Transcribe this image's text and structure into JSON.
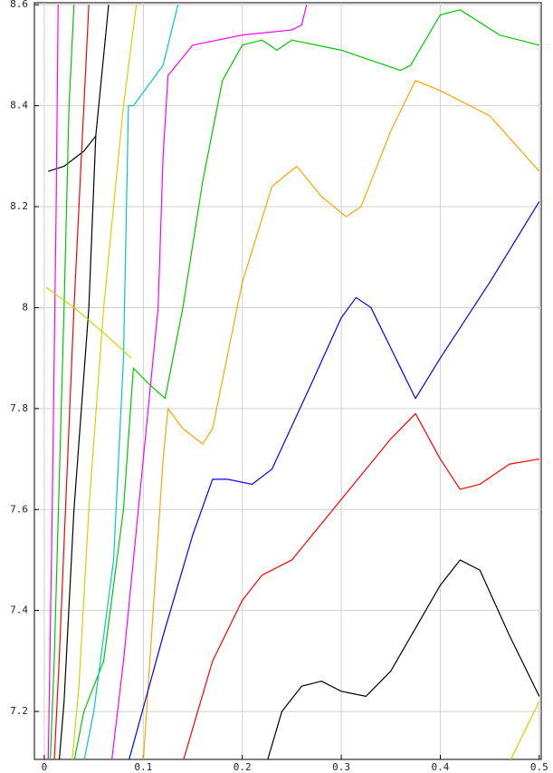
{
  "chart_data": {
    "type": "line",
    "xlim": [
      -0.01,
      0.502
    ],
    "ylim": [
      7.105,
      8.604
    ],
    "xticks": [
      0,
      0.1,
      0.2,
      0.3,
      0.4,
      0.5
    ],
    "yticks": [
      7.2,
      7.4,
      7.6,
      7.8,
      8,
      8.2,
      8.4,
      8.6
    ],
    "grid": true,
    "series": [
      {
        "color": "#00c800",
        "x": [
          0.03,
          0.04,
          0.06,
          0.08,
          0.09,
          0.105,
          0.122,
          0.14,
          0.16,
          0.18,
          0.2,
          0.22,
          0.235,
          0.25,
          0.3,
          0.36,
          0.37,
          0.4,
          0.42,
          0.46,
          0.5
        ],
        "values": [
          7.1,
          7.2,
          7.3,
          7.6,
          7.88,
          7.85,
          7.82,
          8.0,
          8.25,
          8.45,
          8.52,
          8.53,
          8.51,
          8.53,
          8.51,
          8.47,
          8.48,
          8.58,
          8.59,
          8.54,
          8.52
        ]
      },
      {
        "color": "#ffa500",
        "x": [
          0.1,
          0.11,
          0.12,
          0.125,
          0.14,
          0.16,
          0.17,
          0.2,
          0.23,
          0.255,
          0.28,
          0.305,
          0.32,
          0.35,
          0.375,
          0.4,
          0.45,
          0.5
        ],
        "values": [
          7.1,
          7.4,
          7.7,
          7.8,
          7.76,
          7.73,
          7.76,
          8.05,
          8.24,
          8.28,
          8.22,
          8.18,
          8.2,
          8.35,
          8.45,
          8.43,
          8.38,
          8.27
        ]
      },
      {
        "color": "#0000ff",
        "x": [
          0.085,
          0.12,
          0.15,
          0.17,
          0.185,
          0.21,
          0.23,
          0.27,
          0.3,
          0.315,
          0.33,
          0.36,
          0.375,
          0.4,
          0.45,
          0.5
        ],
        "values": [
          7.1,
          7.35,
          7.55,
          7.66,
          7.66,
          7.65,
          7.68,
          7.85,
          7.98,
          8.02,
          8.0,
          7.88,
          7.82,
          7.9,
          8.05,
          8.21
        ]
      },
      {
        "color": "#ff0000",
        "x": [
          0.14,
          0.17,
          0.2,
          0.22,
          0.25,
          0.3,
          0.35,
          0.375,
          0.4,
          0.42,
          0.44,
          0.47,
          0.5
        ],
        "values": [
          7.1,
          7.3,
          7.42,
          7.47,
          7.5,
          7.62,
          7.74,
          7.79,
          7.7,
          7.64,
          7.65,
          7.69,
          7.7
        ]
      },
      {
        "color": "#000000",
        "x": [
          0.225,
          0.24,
          0.26,
          0.28,
          0.3,
          0.325,
          0.35,
          0.4,
          0.42,
          0.44,
          0.47,
          0.5
        ],
        "values": [
          7.1,
          7.2,
          7.25,
          7.26,
          7.24,
          7.23,
          7.28,
          7.45,
          7.5,
          7.48,
          7.35,
          7.23
        ]
      },
      {
        "color": "#d2d200",
        "x": [
          0.47,
          0.5
        ],
        "values": [
          7.1,
          7.22
        ]
      },
      {
        "color": "#ff00ff",
        "x": [
          0.068,
          0.08,
          0.1,
          0.115,
          0.12,
          0.125,
          0.15,
          0.2,
          0.25,
          0.26,
          0.265
        ],
        "values": [
          7.1,
          7.3,
          7.7,
          8.0,
          8.3,
          8.46,
          8.52,
          8.54,
          8.55,
          8.56,
          8.6
        ]
      },
      {
        "color": "#00c8c8",
        "x": [
          0.04,
          0.05,
          0.07,
          0.08,
          0.085,
          0.09,
          0.12,
          0.135
        ],
        "values": [
          7.1,
          7.2,
          7.5,
          7.9,
          8.4,
          8.4,
          8.48,
          8.6
        ]
      },
      {
        "color": "#d2d200",
        "x": [
          0.028,
          0.035,
          0.045,
          0.06,
          0.08,
          0.093
        ],
        "values": [
          7.1,
          7.25,
          7.6,
          8.0,
          8.4,
          8.6
        ]
      },
      {
        "color": "#000000",
        "x": [
          0.015,
          0.02,
          0.03,
          0.045,
          0.052,
          0.065
        ],
        "values": [
          7.1,
          7.22,
          7.6,
          8.0,
          8.34,
          8.6
        ]
      },
      {
        "color": "#000000",
        "x": [
          0.004,
          0.02,
          0.04,
          0.052
        ],
        "values": [
          8.27,
          8.28,
          8.31,
          8.34
        ]
      },
      {
        "color": "#ff0000",
        "x": [
          0.01,
          0.015,
          0.03,
          0.04,
          0.045
        ],
        "values": [
          7.1,
          7.3,
          8.0,
          8.4,
          8.6
        ]
      },
      {
        "color": "#00c800",
        "x": [
          0.006,
          0.01,
          0.02,
          0.025,
          0.03
        ],
        "values": [
          7.1,
          7.3,
          8.0,
          8.4,
          8.6
        ]
      },
      {
        "color": "#ff00ff",
        "x": [
          0.004,
          0.008,
          0.012,
          0.014
        ],
        "values": [
          7.1,
          7.6,
          8.2,
          8.6
        ]
      },
      {
        "color": "#d2d200",
        "x": [
          0.002,
          0.03,
          0.06,
          0.088
        ],
        "values": [
          8.04,
          8.0,
          7.95,
          7.9
        ]
      }
    ]
  }
}
